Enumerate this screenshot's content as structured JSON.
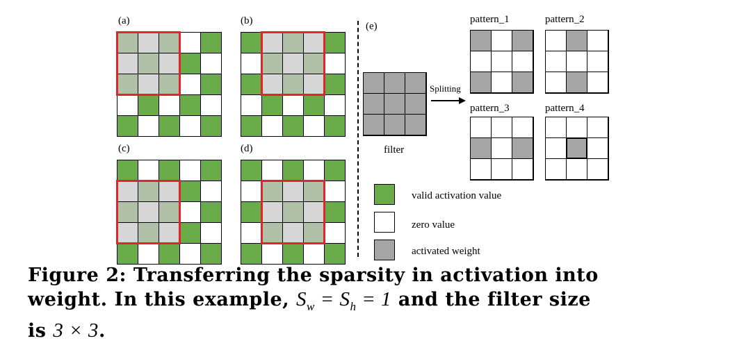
{
  "panels": [
    {
      "label": "(a)"
    },
    {
      "label": "(b)"
    },
    {
      "label": "(c)"
    },
    {
      "label": "(d)"
    }
  ],
  "activation_pattern": [
    [
      1,
      0,
      1,
      0,
      1
    ],
    [
      0,
      1,
      0,
      1,
      0
    ],
    [
      1,
      0,
      1,
      0,
      1
    ],
    [
      0,
      1,
      0,
      1,
      0
    ],
    [
      1,
      0,
      1,
      0,
      1
    ]
  ],
  "panel_e": {
    "label": "(e)",
    "filter_label": "filter",
    "arrow_label": "Splitting",
    "patterns": [
      {
        "title": "pattern_1",
        "cells": [
          [
            1,
            0,
            1
          ],
          [
            0,
            0,
            0
          ],
          [
            1,
            0,
            1
          ]
        ]
      },
      {
        "title": "pattern_2",
        "cells": [
          [
            0,
            1,
            0
          ],
          [
            0,
            0,
            0
          ],
          [
            0,
            1,
            0
          ]
        ]
      },
      {
        "title": "pattern_3",
        "cells": [
          [
            0,
            0,
            0
          ],
          [
            1,
            0,
            1
          ],
          [
            0,
            0,
            0
          ]
        ]
      },
      {
        "title": "pattern_4",
        "cells": [
          [
            0,
            0,
            0
          ],
          [
            0,
            1,
            0
          ],
          [
            0,
            0,
            0
          ]
        ]
      }
    ]
  },
  "legend": [
    {
      "label": "valid activation value",
      "color": "#6aab4a"
    },
    {
      "label": "zero value",
      "color": "#ffffff"
    },
    {
      "label": "activated weight",
      "color": "#a5a5a5"
    }
  ],
  "caption": {
    "line1": "Figure 2:  Transferring the sparsity in activation into",
    "line2_pre": "weight.  In this example, ",
    "line2_math": "S_w = S_h = 1",
    "line2_post": " and the filter size",
    "line3_pre": "is ",
    "line3_math": "3 × 3",
    "line3_post": "."
  },
  "colors": {
    "green": "#6aab4a",
    "gray": "#a5a5a5",
    "red": "#e0242a"
  }
}
